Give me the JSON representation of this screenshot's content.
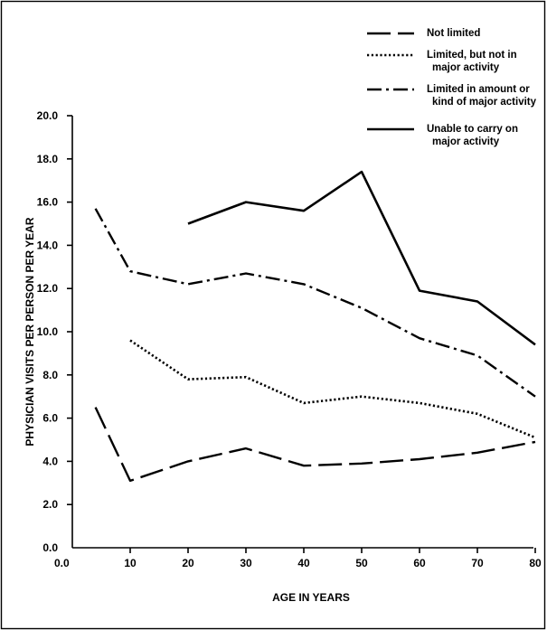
{
  "chart_data": {
    "type": "line",
    "title": "",
    "xlabel": "AGE IN YEARS",
    "ylabel": "PHYSICIAN VISITS PER PERSON PER YEAR",
    "xlim": [
      0,
      80
    ],
    "ylim": [
      0,
      20
    ],
    "x_ticks": [
      0,
      10,
      20,
      30,
      40,
      50,
      60,
      70,
      80
    ],
    "x_tick_labels": [
      "0.0",
      "10",
      "20",
      "30",
      "40",
      "50",
      "60",
      "70",
      "80"
    ],
    "y_ticks": [
      0,
      2,
      4,
      6,
      8,
      10,
      12,
      14,
      16,
      18,
      20
    ],
    "y_tick_labels": [
      "0.0",
      "2.0",
      "4.0",
      "6.0",
      "8.0",
      "10.0",
      "12.0",
      "14.0",
      "16.0",
      "18.0",
      "20.0"
    ],
    "grid": false,
    "legend_position": "top-right",
    "series": [
      {
        "key": "not_limited",
        "name_lines": [
          "Not limited"
        ],
        "style": "long-dash",
        "x": [
          4,
          10,
          20,
          30,
          40,
          50,
          60,
          70,
          80
        ],
        "y": [
          6.5,
          3.1,
          4.0,
          4.6,
          3.8,
          3.9,
          4.1,
          4.4,
          4.9
        ]
      },
      {
        "key": "limited_not_major",
        "name_lines": [
          "Limited, but not in",
          "major activity"
        ],
        "style": "dotted",
        "x": [
          10,
          20,
          30,
          40,
          50,
          60,
          70,
          80
        ],
        "y": [
          9.6,
          7.8,
          7.9,
          6.7,
          7.0,
          6.7,
          6.2,
          5.1
        ]
      },
      {
        "key": "limited_amount_kind",
        "name_lines": [
          "Limited in amount or",
          "kind of major activity"
        ],
        "style": "dash-dot",
        "x": [
          4,
          10,
          20,
          30,
          40,
          50,
          60,
          70,
          80
        ],
        "y": [
          15.7,
          12.8,
          12.2,
          12.7,
          12.2,
          11.1,
          9.7,
          8.9,
          7.0
        ]
      },
      {
        "key": "unable_major",
        "name_lines": [
          "Unable to carry on",
          "major activity"
        ],
        "style": "solid",
        "x": [
          20,
          30,
          40,
          50,
          60,
          70,
          80
        ],
        "y": [
          15.0,
          16.0,
          15.6,
          17.4,
          11.9,
          11.4,
          9.4
        ]
      }
    ]
  }
}
